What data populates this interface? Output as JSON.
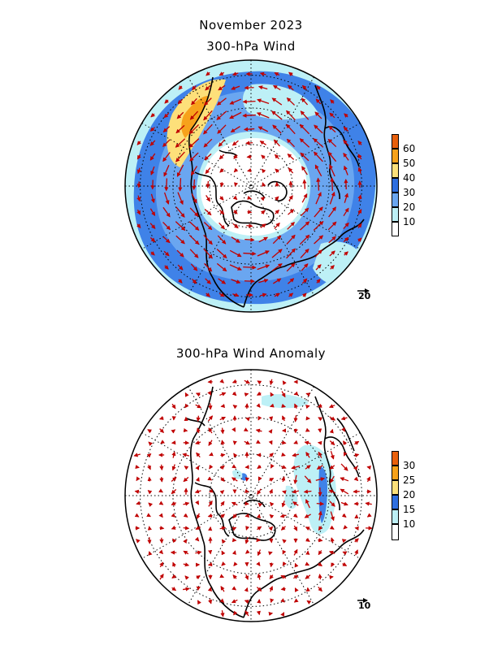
{
  "header": {
    "title_line1": "November 2023",
    "title_line2": "300-hPa Wind"
  },
  "panel_top": {
    "name": "300-hPa Wind",
    "colorbar": {
      "ticks": [
        "60",
        "50",
        "40",
        "30",
        "20",
        "10"
      ],
      "colors": [
        "#e8600c",
        "#f7a21b",
        "#fde07a",
        "#2f6fe0",
        "#6aa6f0",
        "#bdf0f6",
        "#ffffff"
      ]
    },
    "reference_vector": "20"
  },
  "panel_bottom": {
    "title": "300-hPa Wind Anomaly",
    "colorbar": {
      "ticks": [
        "30",
        "25",
        "20",
        "15",
        "10"
      ],
      "colors": [
        "#e8600c",
        "#f7a21b",
        "#fde07a",
        "#2f6fe0",
        "#bdf0f6",
        "#ffffff"
      ]
    },
    "reference_vector": "10"
  },
  "colors": {
    "vector": "#c00000",
    "coast": "#000000",
    "jet_strong": "#fde07a",
    "jet_peak": "#f7a21b"
  }
}
